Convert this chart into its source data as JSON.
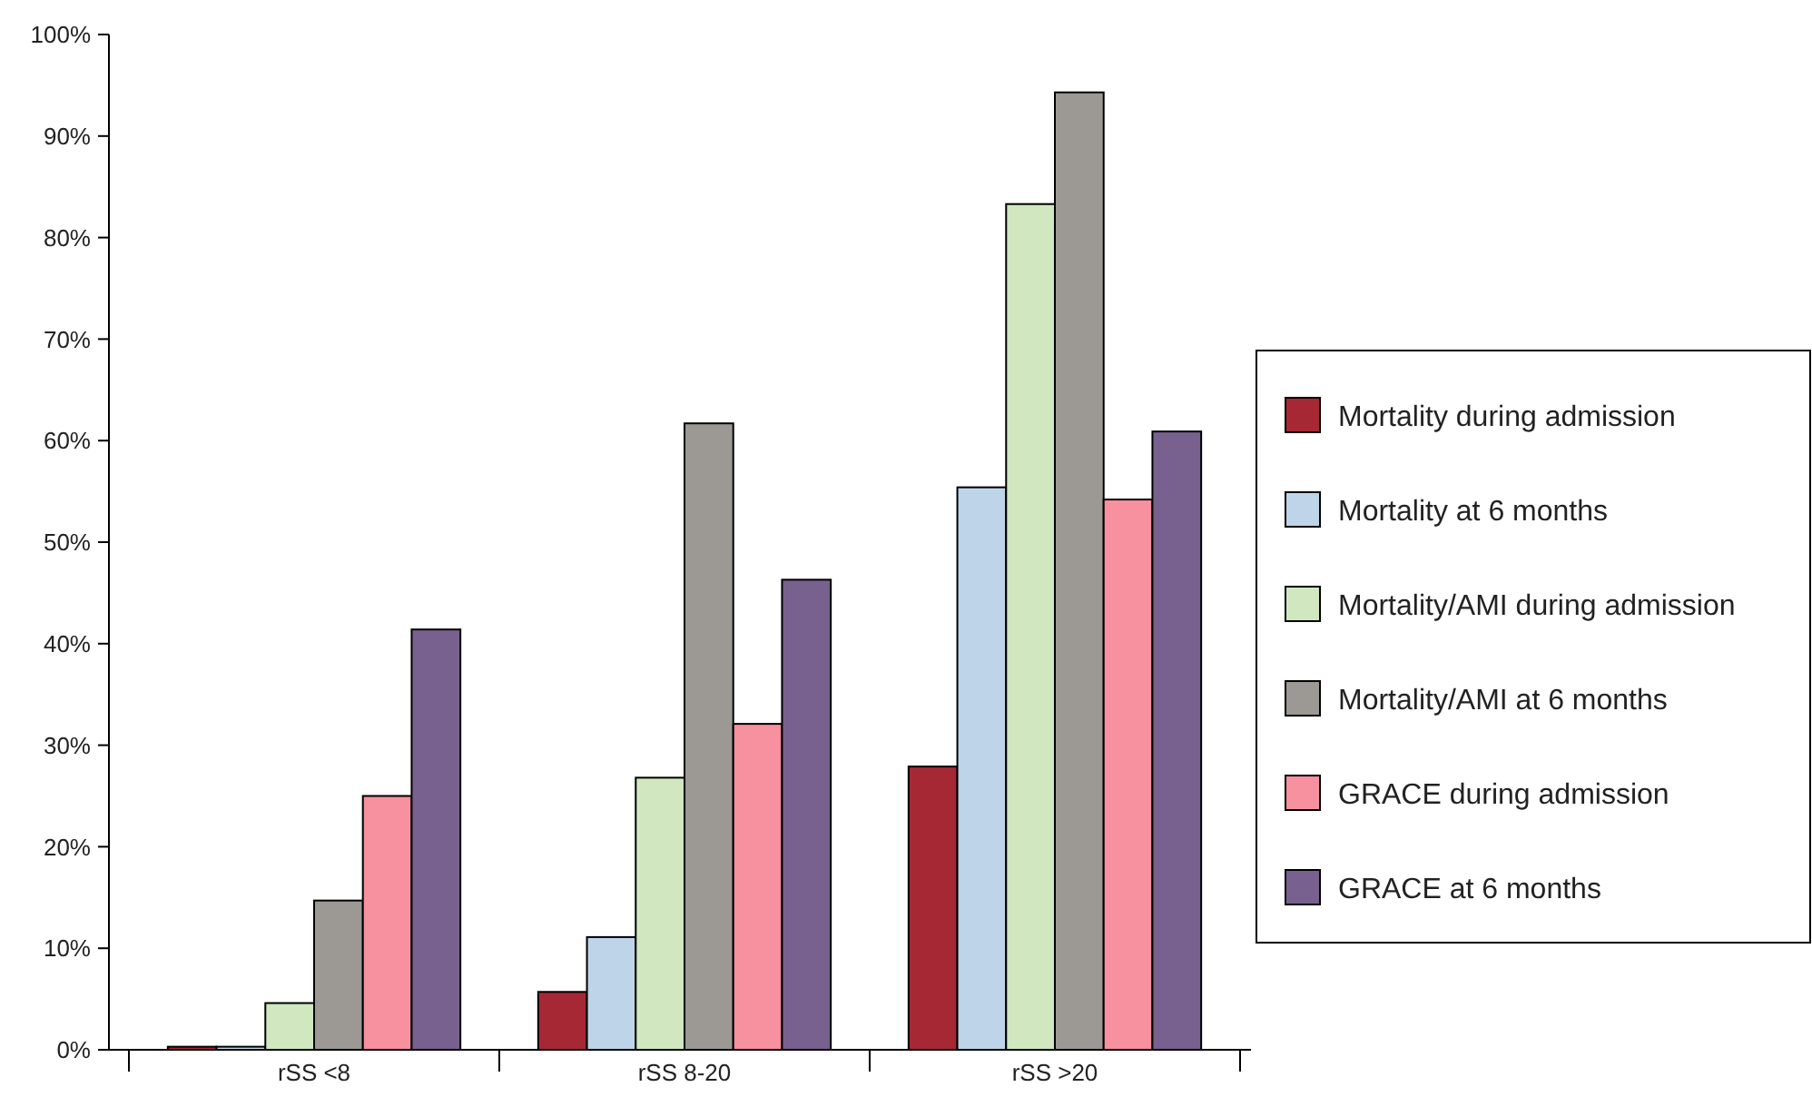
{
  "chart_data": {
    "type": "bar",
    "categories": [
      "rSS <8",
      "rSS 8-20",
      "rSS >20"
    ],
    "series": [
      {
        "name": "Mortality  during admission",
        "color": "#a52834",
        "values": [
          0.3,
          5.7,
          27.9
        ]
      },
      {
        "name": "Mortality at 6 months",
        "color": "#bed4e8",
        "values": [
          0.3,
          11.1,
          55.4
        ]
      },
      {
        "name": "Mortality/AMI during admission",
        "color": "#d0e7bf",
        "values": [
          4.6,
          26.8,
          83.3
        ]
      },
      {
        "name": "Mortality/AMI at 6 months",
        "color": "#9c9894",
        "values": [
          14.7,
          61.7,
          94.3
        ]
      },
      {
        "name": "GRACE during admission",
        "color": "#f7909f",
        "values": [
          25,
          32.1,
          54.2
        ]
      },
      {
        "name": "GRACE at 6 months",
        "color": "#78618e",
        "values": [
          41.4,
          46.3,
          60.9
        ]
      }
    ],
    "ylim": [
      0,
      100
    ],
    "yticks": [
      {
        "value": 0,
        "label": "0%"
      },
      {
        "value": 10,
        "label": "10%"
      },
      {
        "value": 20,
        "label": "20%"
      },
      {
        "value": 30,
        "label": "30%"
      },
      {
        "value": 40,
        "label": "40%"
      },
      {
        "value": 50,
        "label": "50%"
      },
      {
        "value": 60,
        "label": "60%"
      },
      {
        "value": 70,
        "label": "70%"
      },
      {
        "value": 80,
        "label": "80%"
      },
      {
        "value": 90,
        "label": "90%"
      },
      {
        "value": 100,
        "label": "100%"
      }
    ],
    "grid": false,
    "legend": "right"
  }
}
